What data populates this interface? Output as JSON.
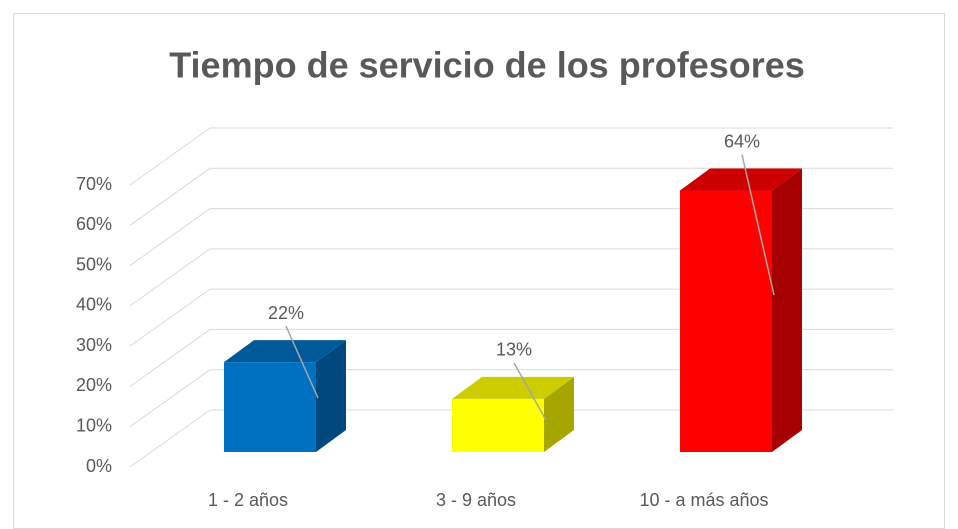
{
  "chart_data": {
    "type": "bar3d",
    "title": "Tiempo de servicio de los profesores",
    "categories": [
      "1 - 2 años",
      "3 - 9 años",
      "10 - a más años"
    ],
    "values": [
      22,
      13,
      64
    ],
    "value_labels": [
      "22%",
      "13%",
      "64%"
    ],
    "colors": [
      "#0070c0",
      "#ffff00",
      "#ff0000"
    ],
    "ylim": [
      0,
      70
    ],
    "yticks": [
      {
        "value": 0,
        "label": "0%"
      },
      {
        "value": 10,
        "label": "10%"
      },
      {
        "value": 20,
        "label": "20%"
      },
      {
        "value": 30,
        "label": "30%"
      },
      {
        "value": 40,
        "label": "40%"
      },
      {
        "value": 50,
        "label": "50%"
      },
      {
        "value": 60,
        "label": "60%"
      },
      {
        "value": 70,
        "label": "70%"
      }
    ],
    "grid": true
  }
}
